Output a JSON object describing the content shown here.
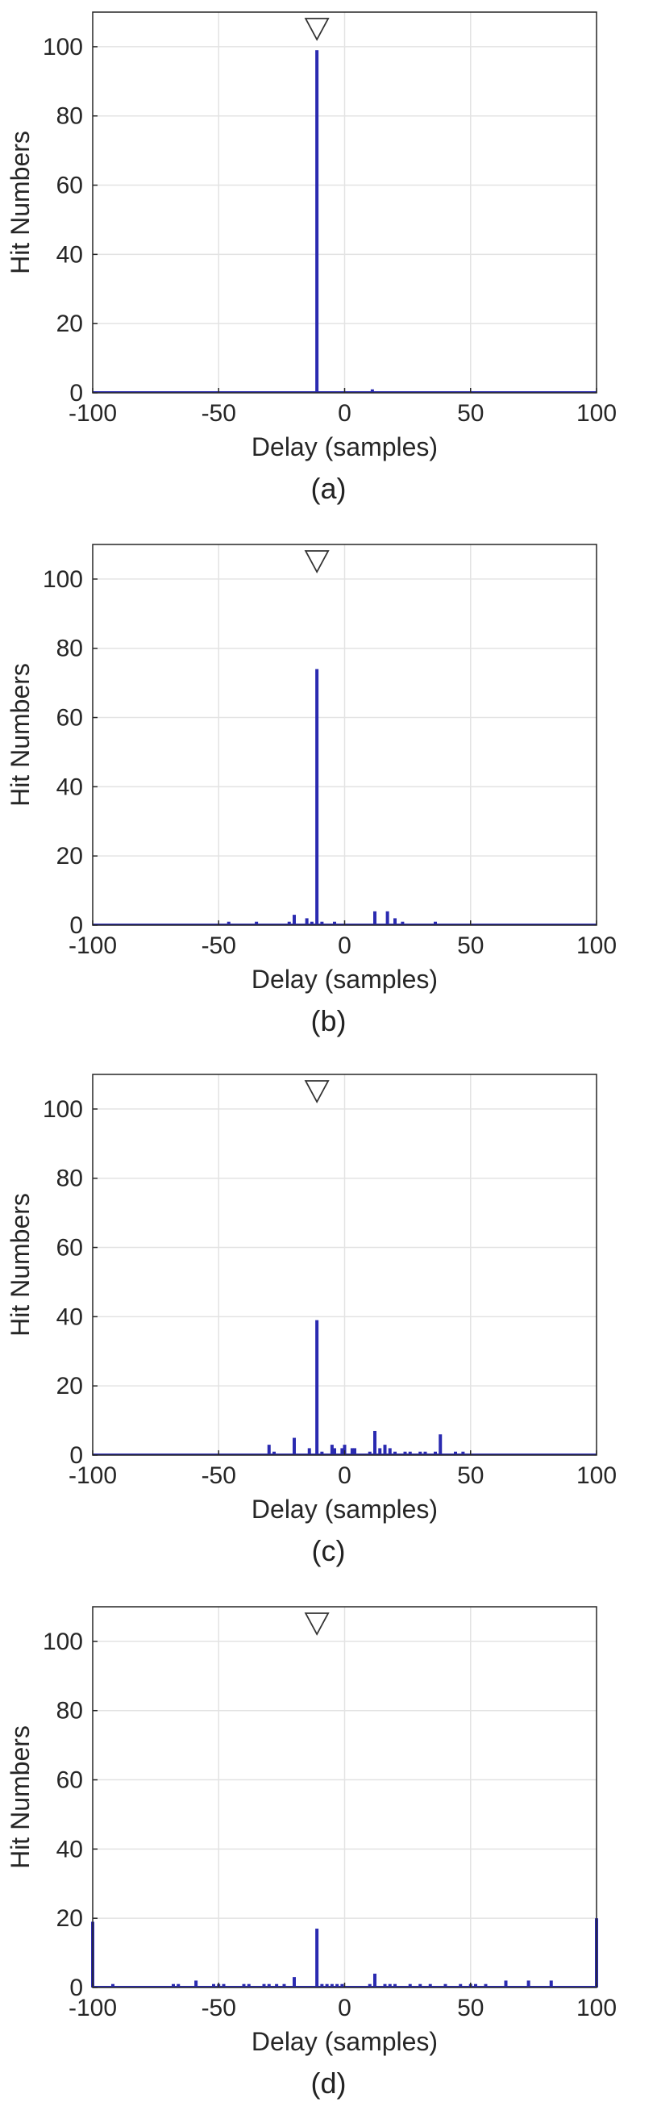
{
  "chart_data": [
    {
      "type": "bar",
      "caption": "(a)",
      "xlabel": "Delay (samples)",
      "ylabel": "Hit Numbers",
      "xlim": [
        -100,
        100
      ],
      "ylim": [
        0,
        110
      ],
      "xticks": [
        -100,
        -50,
        0,
        50,
        100
      ],
      "yticks": [
        0,
        20,
        40,
        60,
        80,
        100
      ],
      "grid": true,
      "marker": {
        "shape": "inverted-triangle",
        "x": -11
      },
      "bar_color": "#2a2ab0",
      "x": [
        -11,
        11
      ],
      "values": [
        99,
        1
      ]
    },
    {
      "type": "bar",
      "caption": "(b)",
      "xlabel": "Delay (samples)",
      "ylabel": "Hit Numbers",
      "xlim": [
        -100,
        100
      ],
      "ylim": [
        0,
        110
      ],
      "xticks": [
        -100,
        -50,
        0,
        50,
        100
      ],
      "yticks": [
        0,
        20,
        40,
        60,
        80,
        100
      ],
      "grid": true,
      "marker": {
        "shape": "inverted-triangle",
        "x": -11
      },
      "bar_color": "#2a2ab0",
      "x": [
        -46,
        -35,
        -22,
        -20,
        -15,
        -13,
        -11,
        -9,
        -4,
        12,
        17,
        20,
        23,
        36
      ],
      "values": [
        1,
        1,
        1,
        3,
        2,
        1,
        74,
        1,
        1,
        4,
        4,
        2,
        1,
        1
      ]
    },
    {
      "type": "bar",
      "caption": "(c)",
      "xlabel": "Delay (samples)",
      "ylabel": "Hit Numbers",
      "xlim": [
        -100,
        100
      ],
      "ylim": [
        0,
        110
      ],
      "xticks": [
        -100,
        -50,
        0,
        50,
        100
      ],
      "yticks": [
        0,
        20,
        40,
        60,
        80,
        100
      ],
      "grid": true,
      "marker": {
        "shape": "inverted-triangle",
        "x": -11
      },
      "bar_color": "#2a2ab0",
      "x": [
        -30,
        -28,
        -20,
        -14,
        -11,
        -9,
        -5,
        -4,
        -1,
        0,
        3,
        4,
        10,
        12,
        14,
        16,
        18,
        20,
        24,
        26,
        30,
        32,
        36,
        38,
        44,
        47
      ],
      "values": [
        3,
        1,
        5,
        2,
        39,
        1,
        3,
        2,
        2,
        3,
        2,
        2,
        1,
        7,
        2,
        3,
        2,
        1,
        1,
        1,
        1,
        1,
        1,
        6,
        1,
        1
      ],
      "marker_note": ""
    },
    {
      "type": "bar",
      "caption": "(d)",
      "xlabel": "Delay (samples)",
      "ylabel": "Hit Numbers",
      "xlim": [
        -100,
        100
      ],
      "ylim": [
        0,
        110
      ],
      "xticks": [
        -100,
        -50,
        0,
        50,
        100
      ],
      "yticks": [
        0,
        20,
        40,
        60,
        80,
        100
      ],
      "grid": true,
      "marker": {
        "shape": "inverted-triangle",
        "x": -11
      },
      "bar_color": "#2a2ab0",
      "x": [
        -100,
        -92,
        -68,
        -66,
        -59,
        -52,
        -50,
        -48,
        -40,
        -38,
        -32,
        -30,
        -27,
        -24,
        -20,
        -11,
        -9,
        -7,
        -5,
        -3,
        -1,
        10,
        12,
        16,
        18,
        20,
        26,
        30,
        34,
        40,
        46,
        50,
        52,
        56,
        64,
        73,
        82,
        100
      ],
      "values": [
        19,
        1,
        1,
        1,
        2,
        1,
        1,
        1,
        1,
        1,
        1,
        1,
        1,
        1,
        3,
        17,
        1,
        1,
        1,
        1,
        1,
        1,
        4,
        1,
        1,
        1,
        1,
        1,
        1,
        1,
        1,
        1,
        1,
        1,
        2,
        2,
        2,
        20
      ]
    }
  ]
}
